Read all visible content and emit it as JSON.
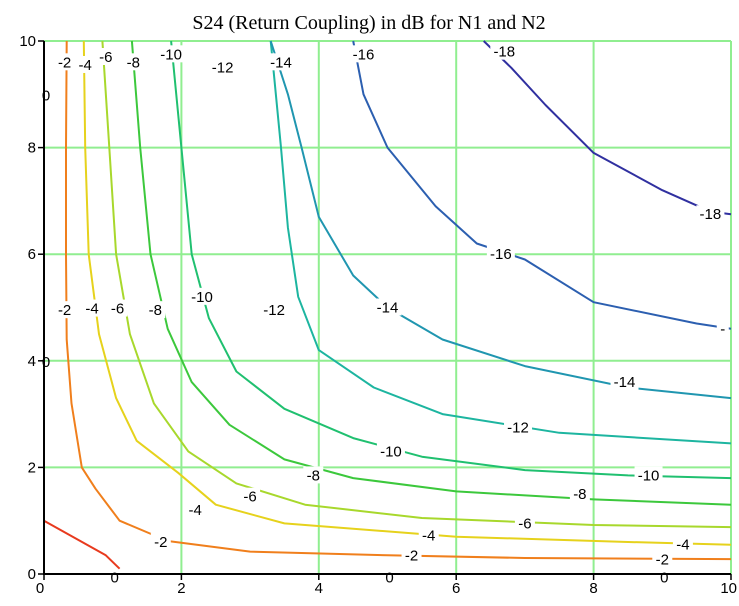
{
  "chart_data": {
    "type": "contour",
    "title": "S24 (Return Coupling) in dB for N1 and N2",
    "xlabel": "",
    "ylabel": "",
    "xlim": [
      0,
      10
    ],
    "ylim": [
      0,
      10
    ],
    "grid": true,
    "grid_color": "#90ee90",
    "x_ticks": [
      "0",
      "2",
      "4",
      "6",
      "8",
      "10"
    ],
    "y_ticks": [
      "0",
      "2",
      "4",
      "6",
      "8",
      "10"
    ],
    "contours": [
      {
        "level": 0,
        "color": "#e83a1e",
        "points": [
          [
            0,
            1.0
          ],
          [
            0.9,
            0.35
          ],
          [
            1.1,
            0.1
          ]
        ],
        "labels": []
      },
      {
        "level": -2,
        "color": "#f07f1c",
        "points": [
          [
            0.33,
            10
          ],
          [
            0.32,
            8.0
          ],
          [
            0.32,
            6.0
          ],
          [
            0.33,
            4.4
          ],
          [
            0.4,
            3.2
          ],
          [
            0.55,
            2.0
          ],
          [
            0.75,
            1.6
          ],
          [
            1.1,
            1.0
          ],
          [
            1.8,
            0.62
          ],
          [
            3.0,
            0.42
          ],
          [
            5.0,
            0.35
          ],
          [
            7.0,
            0.3
          ],
          [
            10,
            0.28
          ]
        ],
        "labels": [
          {
            "text": "-2",
            "x": 0.3,
            "y": 9.6
          },
          {
            "text": "-2",
            "x": 0.3,
            "y": 4.95
          },
          {
            "text": "-2",
            "x": 1.7,
            "y": 0.6
          },
          {
            "text": "-2",
            "x": 5.35,
            "y": 0.35
          },
          {
            "text": "-2",
            "x": 9.0,
            "y": 0.27
          }
        ]
      },
      {
        "level": -4,
        "color": "#e6d21c",
        "points": [
          [
            0.58,
            10
          ],
          [
            0.6,
            8.0
          ],
          [
            0.65,
            6.0
          ],
          [
            0.8,
            4.5
          ],
          [
            1.05,
            3.3
          ],
          [
            1.35,
            2.5
          ],
          [
            1.95,
            1.9
          ],
          [
            2.5,
            1.3
          ],
          [
            3.5,
            0.95
          ],
          [
            6.0,
            0.7
          ],
          [
            8.5,
            0.6
          ],
          [
            10,
            0.55
          ]
        ],
        "labels": [
          {
            "text": "-4",
            "x": 0.6,
            "y": 9.55
          },
          {
            "text": "-4",
            "x": 0.7,
            "y": 4.98
          },
          {
            "text": "-4",
            "x": 2.2,
            "y": 1.2
          },
          {
            "text": "-4",
            "x": 5.6,
            "y": 0.72
          },
          {
            "text": "-4",
            "x": 9.3,
            "y": 0.55
          }
        ]
      },
      {
        "level": -6,
        "color": "#a8d82c",
        "points": [
          [
            0.85,
            10
          ],
          [
            0.95,
            8.0
          ],
          [
            1.05,
            6.0
          ],
          [
            1.25,
            4.5
          ],
          [
            1.6,
            3.2
          ],
          [
            2.1,
            2.3
          ],
          [
            2.8,
            1.7
          ],
          [
            3.8,
            1.3
          ],
          [
            5.5,
            1.05
          ],
          [
            8.0,
            0.92
          ],
          [
            10,
            0.88
          ]
        ],
        "labels": [
          {
            "text": "-6",
            "x": 0.9,
            "y": 9.7
          },
          {
            "text": "-6",
            "x": 1.07,
            "y": 4.98
          },
          {
            "text": "-6",
            "x": 3.0,
            "y": 1.45
          },
          {
            "text": "-6",
            "x": 7.0,
            "y": 0.95
          }
        ]
      },
      {
        "level": -8,
        "color": "#3cc83c",
        "points": [
          [
            1.28,
            10
          ],
          [
            1.4,
            8.0
          ],
          [
            1.55,
            6.0
          ],
          [
            1.8,
            4.6
          ],
          [
            2.15,
            3.6
          ],
          [
            2.7,
            2.8
          ],
          [
            3.5,
            2.15
          ],
          [
            4.5,
            1.8
          ],
          [
            6.0,
            1.55
          ],
          [
            8.0,
            1.4
          ],
          [
            10,
            1.3
          ]
        ],
        "labels": [
          {
            "text": "-8",
            "x": 1.3,
            "y": 9.6
          },
          {
            "text": "-8",
            "x": 1.62,
            "y": 4.95
          },
          {
            "text": "-8",
            "x": 3.92,
            "y": 1.85
          },
          {
            "text": "-8",
            "x": 7.8,
            "y": 1.5
          }
        ]
      },
      {
        "level": -10,
        "color": "#20c070",
        "points": [
          [
            1.85,
            10
          ],
          [
            2.0,
            8.0
          ],
          [
            2.15,
            6.0
          ],
          [
            2.4,
            4.8
          ],
          [
            2.8,
            3.8
          ],
          [
            3.5,
            3.1
          ],
          [
            4.5,
            2.55
          ],
          [
            5.5,
            2.2
          ],
          [
            7.0,
            1.95
          ],
          [
            8.5,
            1.85
          ],
          [
            10,
            1.8
          ]
        ],
        "labels": [
          {
            "text": "-10",
            "x": 1.85,
            "y": 9.75
          },
          {
            "text": "-10",
            "x": 2.3,
            "y": 5.2
          },
          {
            "text": "-10",
            "x": 5.05,
            "y": 2.3
          },
          {
            "text": "-10",
            "x": 8.8,
            "y": 1.85
          }
        ]
      },
      {
        "level": -12,
        "color": "#1db5a0",
        "points": [
          [
            3.3,
            10
          ],
          [
            3.45,
            8.0
          ],
          [
            3.55,
            6.5
          ],
          [
            3.7,
            5.2
          ],
          [
            4.0,
            4.2
          ],
          [
            4.8,
            3.5
          ],
          [
            5.8,
            3.0
          ],
          [
            7.5,
            2.65
          ],
          [
            10,
            2.45
          ]
        ],
        "labels": [
          {
            "text": "-12",
            "x": 2.6,
            "y": 9.5
          },
          {
            "text": "-12",
            "x": 3.35,
            "y": 4.95
          },
          {
            "text": "-12",
            "x": 6.9,
            "y": 2.75
          }
        ]
      },
      {
        "level": -14,
        "color": "#2096b0",
        "points": [
          [
            3.3,
            10
          ],
          [
            3.55,
            9.0
          ],
          [
            3.75,
            8.0
          ],
          [
            4.0,
            6.7
          ],
          [
            4.5,
            5.6
          ],
          [
            5.0,
            5.0
          ],
          [
            5.8,
            4.4
          ],
          [
            7.0,
            3.9
          ],
          [
            8.5,
            3.5
          ],
          [
            10,
            3.3
          ]
        ],
        "labels": [
          {
            "text": "-14",
            "x": 3.45,
            "y": 9.6
          },
          {
            "text": "-14",
            "x": 5.0,
            "y": 5.0
          },
          {
            "text": "-14",
            "x": 8.45,
            "y": 3.6
          }
        ]
      },
      {
        "level": -16,
        "color": "#2c5fb0",
        "points": [
          [
            4.5,
            10
          ],
          [
            4.65,
            9.0
          ],
          [
            5.0,
            8.0
          ],
          [
            5.7,
            6.9
          ],
          [
            6.3,
            6.2
          ],
          [
            7.0,
            5.9
          ],
          [
            8.0,
            5.1
          ],
          [
            9.5,
            4.7
          ],
          [
            10,
            4.6
          ]
        ],
        "labels": [
          {
            "text": "-16",
            "x": 4.65,
            "y": 9.75
          },
          {
            "text": "-16",
            "x": 6.65,
            "y": 6.0
          },
          {
            "text": "-",
            "x": 9.88,
            "y": 4.6
          }
        ]
      },
      {
        "level": -18,
        "color": "#3030a0",
        "points": [
          [
            6.4,
            10
          ],
          [
            6.8,
            9.5
          ],
          [
            7.3,
            8.8
          ],
          [
            8.0,
            7.9
          ],
          [
            9.0,
            7.2
          ],
          [
            9.7,
            6.8
          ],
          [
            10,
            6.75
          ]
        ],
        "labels": [
          {
            "text": "-18",
            "x": 6.7,
            "y": 9.8
          },
          {
            "text": "-18",
            "x": 9.7,
            "y": 6.75
          }
        ]
      }
    ],
    "edge_labels": [
      {
        "text": "0",
        "x": 0.0,
        "y": 9.0
      },
      {
        "text": "0",
        "x": 0.0,
        "y": 4.0
      },
      {
        "text": "0",
        "x": 1.0,
        "y": -0.05
      },
      {
        "text": "0",
        "x": 5.0,
        "y": -0.05
      },
      {
        "text": "0",
        "x": 9.0,
        "y": -0.05
      }
    ]
  }
}
